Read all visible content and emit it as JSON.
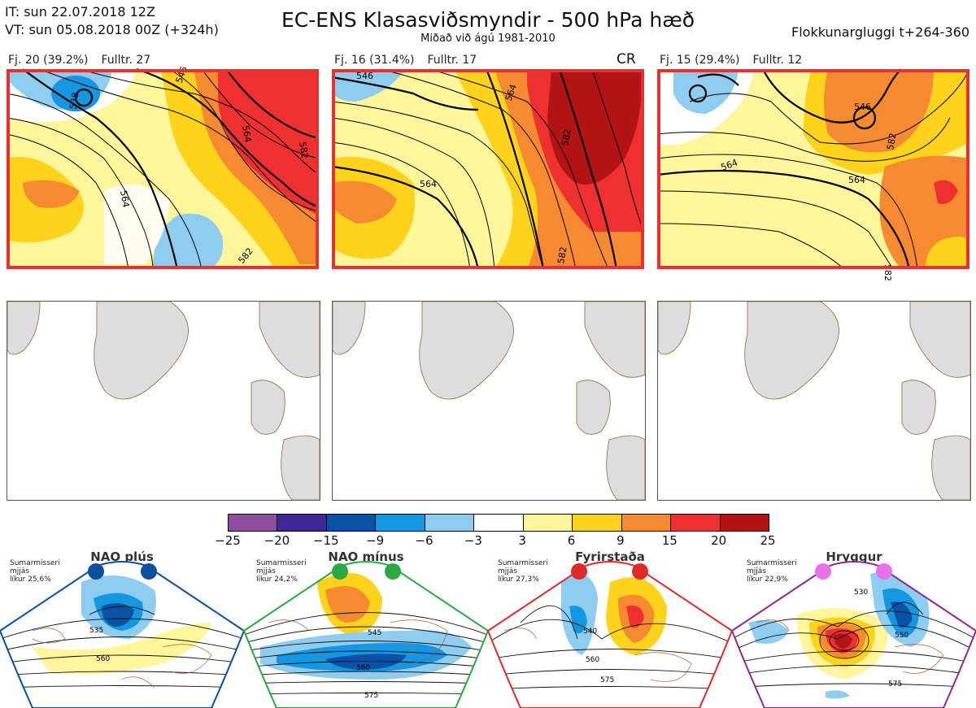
{
  "header": {
    "it": "IT: sun 22.07.2018 12Z",
    "vt": "VT: sun 05.08.2018 00Z  (+324h)",
    "title": "EC-ENS Klasasviðsmyndir - 500 hPa hæð",
    "subtitle": "Miðað við ágú 1981-2010",
    "window": "Flokkunargluggi t+264-360"
  },
  "clusters": [
    {
      "members": "Fj. 20 (39.2%)",
      "repr": "Fulltr. 27",
      "flag": "",
      "contours": [
        "546",
        "564",
        "582",
        "538"
      ],
      "border": "#e83030"
    },
    {
      "members": "Fj. 16 (31.4%)",
      "repr": "Fulltr. 17",
      "flag": "CR",
      "contours": [
        "564",
        "582",
        "546"
      ],
      "border": "#e83030"
    },
    {
      "members": "Fj. 15 (29.4%)",
      "repr": "Fulltr. 12",
      "flag": "",
      "contours": [
        "546",
        "564",
        "582"
      ],
      "border": "#e83030"
    }
  ],
  "colorbar": {
    "colors": [
      "#8e4ea0",
      "#41289a",
      "#0a52a6",
      "#1496e0",
      "#8ecdf0",
      "#ffffff",
      "#fff59a",
      "#ffd21c",
      "#f68a30",
      "#ee3030",
      "#b21416"
    ],
    "ticks": [
      "−25",
      "−20",
      "−15",
      "−9",
      "−6",
      "−3",
      "3",
      "6",
      "9",
      "15",
      "20",
      "25"
    ]
  },
  "regimes": [
    {
      "name": "NAO plús",
      "season": "Sumarmisseri",
      "label": "mjjás",
      "likur": "líkur 25,6%",
      "color": "#0b4f9e",
      "dot": "#0b4f9e",
      "contours": [
        "535",
        "560"
      ]
    },
    {
      "name": "NAO mínus",
      "season": "Sumarmisseri",
      "label": "mjjás",
      "likur": "líkur 24,2%",
      "color": "#2aa844",
      "dot": "#2aa844",
      "contours": [
        "545",
        "560",
        "575"
      ]
    },
    {
      "name": "Fyrirstaða",
      "season": "Sumarmisseri",
      "label": "mjjás",
      "likur": "líkur 27,3%",
      "color": "#e02a2a",
      "dot": "#e02a2a",
      "contours": [
        "540",
        "560",
        "575"
      ]
    },
    {
      "name": "Hryggur",
      "season": "Sumarmisseri",
      "label": "mjjás",
      "likur": "líkur 22,9%",
      "color": "#8a2a8e",
      "dot": "#e870e8",
      "contours": [
        "530",
        "550",
        "575"
      ]
    }
  ]
}
